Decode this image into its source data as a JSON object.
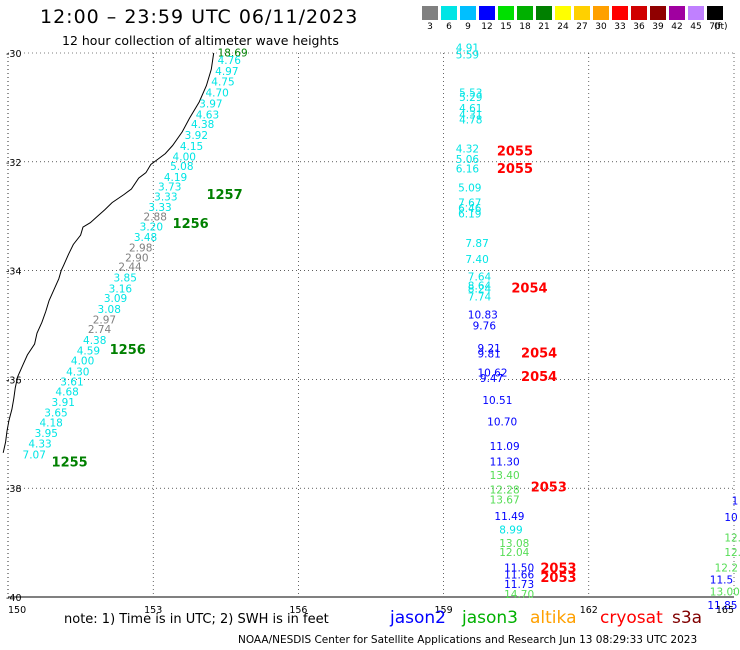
{
  "header": {
    "title": "12:00 – 23:59 UTC 06/11/2023",
    "subtitle": "12 hour collection of altimeter wave heights"
  },
  "color_scale": {
    "labels": [
      "3",
      "6",
      "9",
      "12",
      "15",
      "18",
      "21",
      "24",
      "27",
      "30",
      "33",
      "36",
      "39",
      "42",
      "45",
      "70"
    ],
    "unit": "(ft)",
    "colors": [
      "#808080",
      "#00e5e5",
      "#00bfff",
      "#0000ff",
      "#00e000",
      "#00b000",
      "#008000",
      "#ffff00",
      "#ffd000",
      "#ffa000",
      "#ff0000",
      "#d00000",
      "#900000",
      "#a000a0",
      "#c080ff",
      "#000000"
    ]
  },
  "axes": {
    "lon_ticks": [
      "150",
      "153",
      "156",
      "159",
      "162",
      "165"
    ],
    "lat_ticks": [
      "-30",
      "-32",
      "-34",
      "-36",
      "-38",
      "-40"
    ]
  },
  "pass_labels": [
    {
      "text": "1257",
      "lon": 154.1,
      "lat": -32.68,
      "color": "#008000"
    },
    {
      "text": "1256",
      "lon": 153.4,
      "lat": -33.22,
      "color": "#008000"
    },
    {
      "text": "1256",
      "lon": 152.1,
      "lat": -35.53,
      "color": "#008000"
    },
    {
      "text": "1255",
      "lon": 150.9,
      "lat": -37.6,
      "color": "#008000"
    },
    {
      "text": "2055",
      "lon": 160.1,
      "lat": -31.88,
      "color": "#ff0000"
    },
    {
      "text": "2055",
      "lon": 160.1,
      "lat": -32.21,
      "color": "#ff0000"
    },
    {
      "text": "2054",
      "lon": 160.4,
      "lat": -34.4,
      "color": "#ff0000"
    },
    {
      "text": "2054",
      "lon": 160.6,
      "lat": -35.6,
      "color": "#ff0000"
    },
    {
      "text": "2054",
      "lon": 160.6,
      "lat": -36.03,
      "color": "#ff0000"
    },
    {
      "text": "2053",
      "lon": 160.8,
      "lat": -38.06,
      "color": "#ff0000"
    },
    {
      "text": "2053",
      "lon": 161.0,
      "lat": -39.55,
      "color": "#ff0000"
    },
    {
      "text": "2053",
      "lon": 161.0,
      "lat": -39.72,
      "color": "#ff0000"
    }
  ],
  "tracks": [
    {
      "name": "jason3-west",
      "color_default": "#00e5e5",
      "points": [
        {
          "v": "18.69",
          "lon": 154.33,
          "lat": -30.06,
          "c": "#008000"
        },
        {
          "v": "4.76",
          "lon": 154.33,
          "lat": -30.2
        },
        {
          "v": "4.97",
          "lon": 154.28,
          "lat": -30.4
        },
        {
          "v": "4.75",
          "lon": 154.2,
          "lat": -30.6
        },
        {
          "v": "4.70",
          "lon": 154.08,
          "lat": -30.8
        },
        {
          "v": "3.97",
          "lon": 153.95,
          "lat": -31.0
        },
        {
          "v": "4.63",
          "lon": 153.88,
          "lat": -31.2
        },
        {
          "v": "4.38",
          "lon": 153.78,
          "lat": -31.38
        },
        {
          "v": "3.92",
          "lon": 153.65,
          "lat": -31.58
        },
        {
          "v": "4.15",
          "lon": 153.55,
          "lat": -31.78
        },
        {
          "v": "4.00",
          "lon": 153.4,
          "lat": -31.98
        },
        {
          "v": "5.08",
          "lon": 153.35,
          "lat": -32.15
        },
        {
          "v": "4.19",
          "lon": 153.22,
          "lat": -32.35
        },
        {
          "v": "3.73",
          "lon": 153.1,
          "lat": -32.53
        },
        {
          "v": "3.33",
          "lon": 153.02,
          "lat": -32.71
        },
        {
          "v": "3.33",
          "lon": 152.9,
          "lat": -32.9
        },
        {
          "v": "2.88",
          "lon": 152.8,
          "lat": -33.08,
          "c": "#808080"
        },
        {
          "v": "3.20",
          "lon": 152.72,
          "lat": -33.26
        },
        {
          "v": "3.48",
          "lon": 152.6,
          "lat": -33.46
        },
        {
          "v": "2.98",
          "lon": 152.5,
          "lat": -33.65,
          "c": "#808080"
        },
        {
          "v": "2.90",
          "lon": 152.42,
          "lat": -33.83,
          "c": "#808080"
        },
        {
          "v": "2.44",
          "lon": 152.28,
          "lat": -34.0,
          "c": "#808080"
        },
        {
          "v": "3.85",
          "lon": 152.18,
          "lat": -34.2
        },
        {
          "v": "3.16",
          "lon": 152.08,
          "lat": -34.4
        },
        {
          "v": "3.09",
          "lon": 151.98,
          "lat": -34.58
        },
        {
          "v": "3.08",
          "lon": 151.85,
          "lat": -34.78
        },
        {
          "v": "2.97",
          "lon": 151.75,
          "lat": -34.97,
          "c": "#808080"
        },
        {
          "v": "2.74",
          "lon": 151.65,
          "lat": -35.15,
          "c": "#808080"
        },
        {
          "v": "4.38",
          "lon": 151.55,
          "lat": -35.35
        },
        {
          "v": "4.59",
          "lon": 151.42,
          "lat": -35.54
        },
        {
          "v": "4.00",
          "lon": 151.3,
          "lat": -35.73
        },
        {
          "v": "4.30",
          "lon": 151.2,
          "lat": -35.93
        },
        {
          "v": "3.61",
          "lon": 151.08,
          "lat": -36.11
        },
        {
          "v": "4.68",
          "lon": 150.98,
          "lat": -36.3
        },
        {
          "v": "3.91",
          "lon": 150.9,
          "lat": -36.49
        },
        {
          "v": "3.65",
          "lon": 150.75,
          "lat": -36.68
        },
        {
          "v": "4.18",
          "lon": 150.65,
          "lat": -36.87
        },
        {
          "v": "3.95",
          "lon": 150.55,
          "lat": -37.06
        },
        {
          "v": "4.33",
          "lon": 150.42,
          "lat": -37.25
        },
        {
          "v": "7.07",
          "lon": 150.3,
          "lat": -37.45
        }
      ]
    },
    {
      "name": "track-159",
      "color_default": "#00e5e5",
      "points": [
        {
          "v": "4.91",
          "lon": 159.25,
          "lat": -29.97
        },
        {
          "v": "5.59",
          "lon": 159.25,
          "lat": -30.1
        },
        {
          "v": "5.53",
          "lon": 159.32,
          "lat": -30.8
        },
        {
          "v": "5.29",
          "lon": 159.32,
          "lat": -30.88
        },
        {
          "v": "4.61",
          "lon": 159.32,
          "lat": -31.08
        },
        {
          "v": "4.31",
          "lon": 159.32,
          "lat": -31.2
        },
        {
          "v": "4.78",
          "lon": 159.32,
          "lat": -31.3
        },
        {
          "v": "4.32",
          "lon": 159.25,
          "lat": -31.83
        },
        {
          "v": "5.06",
          "lon": 159.25,
          "lat": -32.02
        },
        {
          "v": "6.16",
          "lon": 159.25,
          "lat": -32.2
        },
        {
          "v": "5.09",
          "lon": 159.3,
          "lat": -32.55
        },
        {
          "v": "7.67",
          "lon": 159.3,
          "lat": -32.82
        },
        {
          "v": "6.46",
          "lon": 159.3,
          "lat": -32.92
        },
        {
          "v": "6.19",
          "lon": 159.3,
          "lat": -33.02
        },
        {
          "v": "7.87",
          "lon": 159.45,
          "lat": -33.57
        },
        {
          "v": "7.40",
          "lon": 159.45,
          "lat": -33.86
        },
        {
          "v": "7.64",
          "lon": 159.5,
          "lat": -34.18
        },
        {
          "v": "8.64",
          "lon": 159.5,
          "lat": -34.35
        },
        {
          "v": "8.24",
          "lon": 159.5,
          "lat": -34.4
        },
        {
          "v": "7.74",
          "lon": 159.5,
          "lat": -34.55
        },
        {
          "v": "10.83",
          "lon": 159.5,
          "lat": -34.88,
          "c": "#0000ff"
        },
        {
          "v": "9.76",
          "lon": 159.6,
          "lat": -35.08,
          "c": "#0000ff"
        },
        {
          "v": "9.21",
          "lon": 159.7,
          "lat": -35.5,
          "c": "#0000ff"
        },
        {
          "v": "9.81",
          "lon": 159.7,
          "lat": -35.6,
          "c": "#0000ff"
        },
        {
          "v": "10.62",
          "lon": 159.7,
          "lat": -35.95,
          "c": "#0000ff"
        },
        {
          "v": "9.47",
          "lon": 159.75,
          "lat": -36.05,
          "c": "#0000ff"
        },
        {
          "v": "10.51",
          "lon": 159.8,
          "lat": -36.45,
          "c": "#0000ff"
        },
        {
          "v": "10.70",
          "lon": 159.9,
          "lat": -36.85,
          "c": "#0000ff"
        },
        {
          "v": "11.09",
          "lon": 159.95,
          "lat": -37.3,
          "c": "#0000ff"
        },
        {
          "v": "11.30",
          "lon": 159.95,
          "lat": -37.58,
          "c": "#0000ff"
        },
        {
          "v": "13.40",
          "lon": 159.95,
          "lat": -37.83,
          "c": "#55dd55"
        },
        {
          "v": "12.28",
          "lon": 159.95,
          "lat": -38.1,
          "c": "#55dd55"
        },
        {
          "v": "13.67",
          "lon": 159.95,
          "lat": -38.28,
          "c": "#55dd55"
        },
        {
          "v": "11.49",
          "lon": 160.05,
          "lat": -38.58,
          "c": "#0000ff"
        },
        {
          "v": "8.99",
          "lon": 160.15,
          "lat": -38.83
        },
        {
          "v": "13.08",
          "lon": 160.15,
          "lat": -39.08,
          "c": "#55dd55"
        },
        {
          "v": "12.04",
          "lon": 160.15,
          "lat": -39.25,
          "c": "#55dd55"
        },
        {
          "v": "11.50",
          "lon": 160.25,
          "lat": -39.53,
          "c": "#0000ff"
        },
        {
          "v": "11.66",
          "lon": 160.25,
          "lat": -39.66,
          "c": "#0000ff"
        },
        {
          "v": "11.73",
          "lon": 160.25,
          "lat": -39.83,
          "c": "#0000ff"
        },
        {
          "v": "14.70",
          "lon": 160.25,
          "lat": -40.02,
          "c": "#55dd55"
        }
      ]
    },
    {
      "name": "track-165",
      "color_default": "#55dd55",
      "points": [
        {
          "v": "1",
          "lon": 164.95,
          "lat": -38.3,
          "c": "#0000ff"
        },
        {
          "v": "10",
          "lon": 164.8,
          "lat": -38.6,
          "c": "#0000ff"
        },
        {
          "v": "12.",
          "lon": 164.8,
          "lat": -38.98
        },
        {
          "v": "12.",
          "lon": 164.8,
          "lat": -39.25
        },
        {
          "v": "12.2",
          "lon": 164.6,
          "lat": -39.53
        },
        {
          "v": "11.5",
          "lon": 164.5,
          "lat": -39.75,
          "c": "#0000ff"
        },
        {
          "v": "13.00",
          "lon": 164.5,
          "lat": -39.97
        },
        {
          "v": "11.85",
          "lon": 164.45,
          "lat": -40.22,
          "c": "#0000ff"
        }
      ]
    }
  ],
  "coastline": [
    [
      154.25,
      -30.0
    ],
    [
      154.2,
      -30.3
    ],
    [
      154.1,
      -30.6
    ],
    [
      153.95,
      -30.9
    ],
    [
      153.75,
      -31.2
    ],
    [
      153.6,
      -31.45
    ],
    [
      153.4,
      -31.7
    ],
    [
      153.25,
      -31.85
    ],
    [
      153.1,
      -31.95
    ],
    [
      152.95,
      -32.05
    ],
    [
      152.85,
      -32.2
    ],
    [
      152.7,
      -32.3
    ],
    [
      152.55,
      -32.5
    ],
    [
      152.4,
      -32.6
    ],
    [
      152.15,
      -32.75
    ],
    [
      152.0,
      -32.88
    ],
    [
      151.85,
      -33.0
    ],
    [
      151.7,
      -33.12
    ],
    [
      151.55,
      -33.2
    ],
    [
      151.5,
      -33.35
    ],
    [
      151.35,
      -33.52
    ],
    [
      151.25,
      -33.7
    ],
    [
      151.15,
      -33.9
    ],
    [
      151.1,
      -34.0
    ],
    [
      151.05,
      -34.15
    ],
    [
      150.95,
      -34.35
    ],
    [
      150.85,
      -34.55
    ],
    [
      150.78,
      -34.75
    ],
    [
      150.7,
      -34.95
    ],
    [
      150.6,
      -35.15
    ],
    [
      150.55,
      -35.35
    ],
    [
      150.4,
      -35.55
    ],
    [
      150.3,
      -35.75
    ],
    [
      150.2,
      -35.95
    ],
    [
      150.15,
      -36.15
    ],
    [
      150.12,
      -36.35
    ],
    [
      150.08,
      -36.55
    ],
    [
      150.02,
      -36.75
    ],
    [
      149.98,
      -36.95
    ],
    [
      149.95,
      -37.15
    ],
    [
      149.9,
      -37.35
    ]
  ],
  "legend": {
    "note": "note: 1) Time is in UTC; 2) SWH is in feet",
    "satellites": [
      {
        "name": "jason2",
        "color": "#0000ff"
      },
      {
        "name": "jason3",
        "color": "#00b000"
      },
      {
        "name": "altika",
        "color": "#ffa000"
      },
      {
        "name": "cryosat",
        "color": "#ff0000"
      },
      {
        "name": "s3a",
        "color": "#800000"
      }
    ]
  },
  "credit": "NOAA/NESDIS Center for Satellite Applications and Research   Jun 13 08:29:33 UTC 2023"
}
